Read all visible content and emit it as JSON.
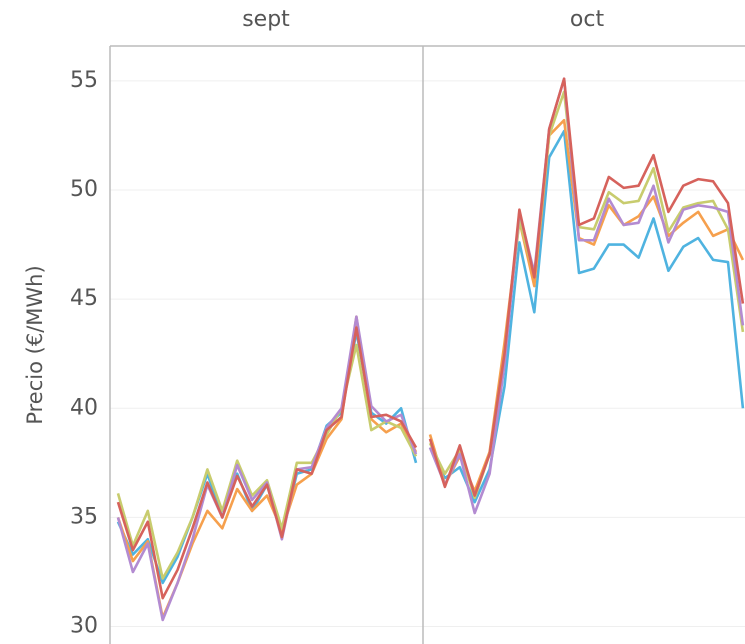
{
  "chart_data": [
    {
      "type": "line",
      "title": "sept",
      "y_label": "Precio (€/MWh)",
      "ylim": [
        29.2,
        56.6
      ],
      "yticks": [
        30,
        35,
        40,
        45,
        50,
        55
      ],
      "grid": true,
      "series": [
        {
          "color": "#4fb3e0",
          "values": [
            34.8,
            33.3,
            34.0,
            32.0,
            33.2,
            35.0,
            37.0,
            35.0,
            37.0,
            35.3,
            36.5,
            34.2,
            37.0,
            37.2,
            39.2,
            39.8,
            43.5,
            39.8,
            39.3,
            40.0,
            37.5
          ]
        },
        {
          "color": "#f6a04d",
          "values": [
            35.0,
            33.0,
            33.9,
            30.4,
            32.0,
            33.8,
            35.3,
            34.5,
            36.3,
            35.3,
            36.0,
            34.4,
            36.5,
            37.0,
            38.6,
            39.5,
            44.2,
            39.5,
            38.9,
            39.3,
            38.0
          ]
        },
        {
          "color": "#c8cc6e",
          "values": [
            36.1,
            33.7,
            35.3,
            32.2,
            33.4,
            35.0,
            37.2,
            35.3,
            37.6,
            36.0,
            36.7,
            34.5,
            37.5,
            37.5,
            38.8,
            40.0,
            42.9,
            39.0,
            39.4,
            39.1,
            37.8
          ]
        },
        {
          "color": "#b38bd1",
          "values": [
            35.0,
            32.5,
            33.8,
            30.3,
            32.0,
            34.0,
            36.5,
            35.0,
            37.4,
            35.8,
            36.6,
            34.0,
            37.2,
            37.3,
            39.1,
            40.0,
            44.2,
            40.1,
            39.4,
            39.7,
            37.9
          ]
        },
        {
          "color": "#d6625c",
          "values": [
            35.7,
            33.5,
            34.8,
            31.3,
            32.6,
            34.5,
            36.6,
            35.0,
            36.9,
            35.5,
            36.5,
            34.1,
            37.2,
            37.0,
            39.0,
            39.6,
            43.7,
            39.6,
            39.7,
            39.4,
            38.2
          ]
        }
      ]
    },
    {
      "type": "line",
      "title": "oct",
      "ylim": [
        29.2,
        56.6
      ],
      "series": [
        {
          "color": "#4fb3e0",
          "values": [
            38.2,
            36.8,
            37.3,
            35.7,
            37.2,
            41.0,
            47.6,
            44.4,
            51.5,
            52.7,
            46.2,
            46.4,
            47.5,
            47.5,
            46.9,
            48.7,
            46.3,
            47.4,
            47.8,
            46.8,
            46.7,
            40.0
          ]
        },
        {
          "color": "#f6a04d",
          "values": [
            38.8,
            36.5,
            37.8,
            36.2,
            38.0,
            43.0,
            48.6,
            45.6,
            52.5,
            53.2,
            47.8,
            47.5,
            49.3,
            48.4,
            48.8,
            49.7,
            47.9,
            48.5,
            49.0,
            47.9,
            48.2,
            46.8
          ]
        },
        {
          "color": "#c8cc6e",
          "values": [
            38.4,
            37.0,
            38.1,
            35.9,
            37.9,
            42.5,
            48.6,
            46.1,
            52.5,
            54.5,
            48.3,
            48.2,
            49.9,
            49.4,
            49.5,
            51.0,
            48.1,
            49.2,
            49.4,
            49.5,
            48.2,
            43.5
          ]
        },
        {
          "color": "#b38bd1",
          "values": [
            38.2,
            36.5,
            37.9,
            35.2,
            37.0,
            42.0,
            49.0,
            46.2,
            52.8,
            55.1,
            47.7,
            47.7,
            49.6,
            48.4,
            48.5,
            50.2,
            47.6,
            49.1,
            49.3,
            49.2,
            49.0,
            43.8
          ]
        },
        {
          "color": "#d6625c",
          "values": [
            38.6,
            36.4,
            38.3,
            36.0,
            37.9,
            42.5,
            49.1,
            46.0,
            52.8,
            55.1,
            48.4,
            48.7,
            50.6,
            50.1,
            50.2,
            51.6,
            49.0,
            50.2,
            50.5,
            50.4,
            49.4,
            44.8
          ]
        }
      ]
    }
  ]
}
